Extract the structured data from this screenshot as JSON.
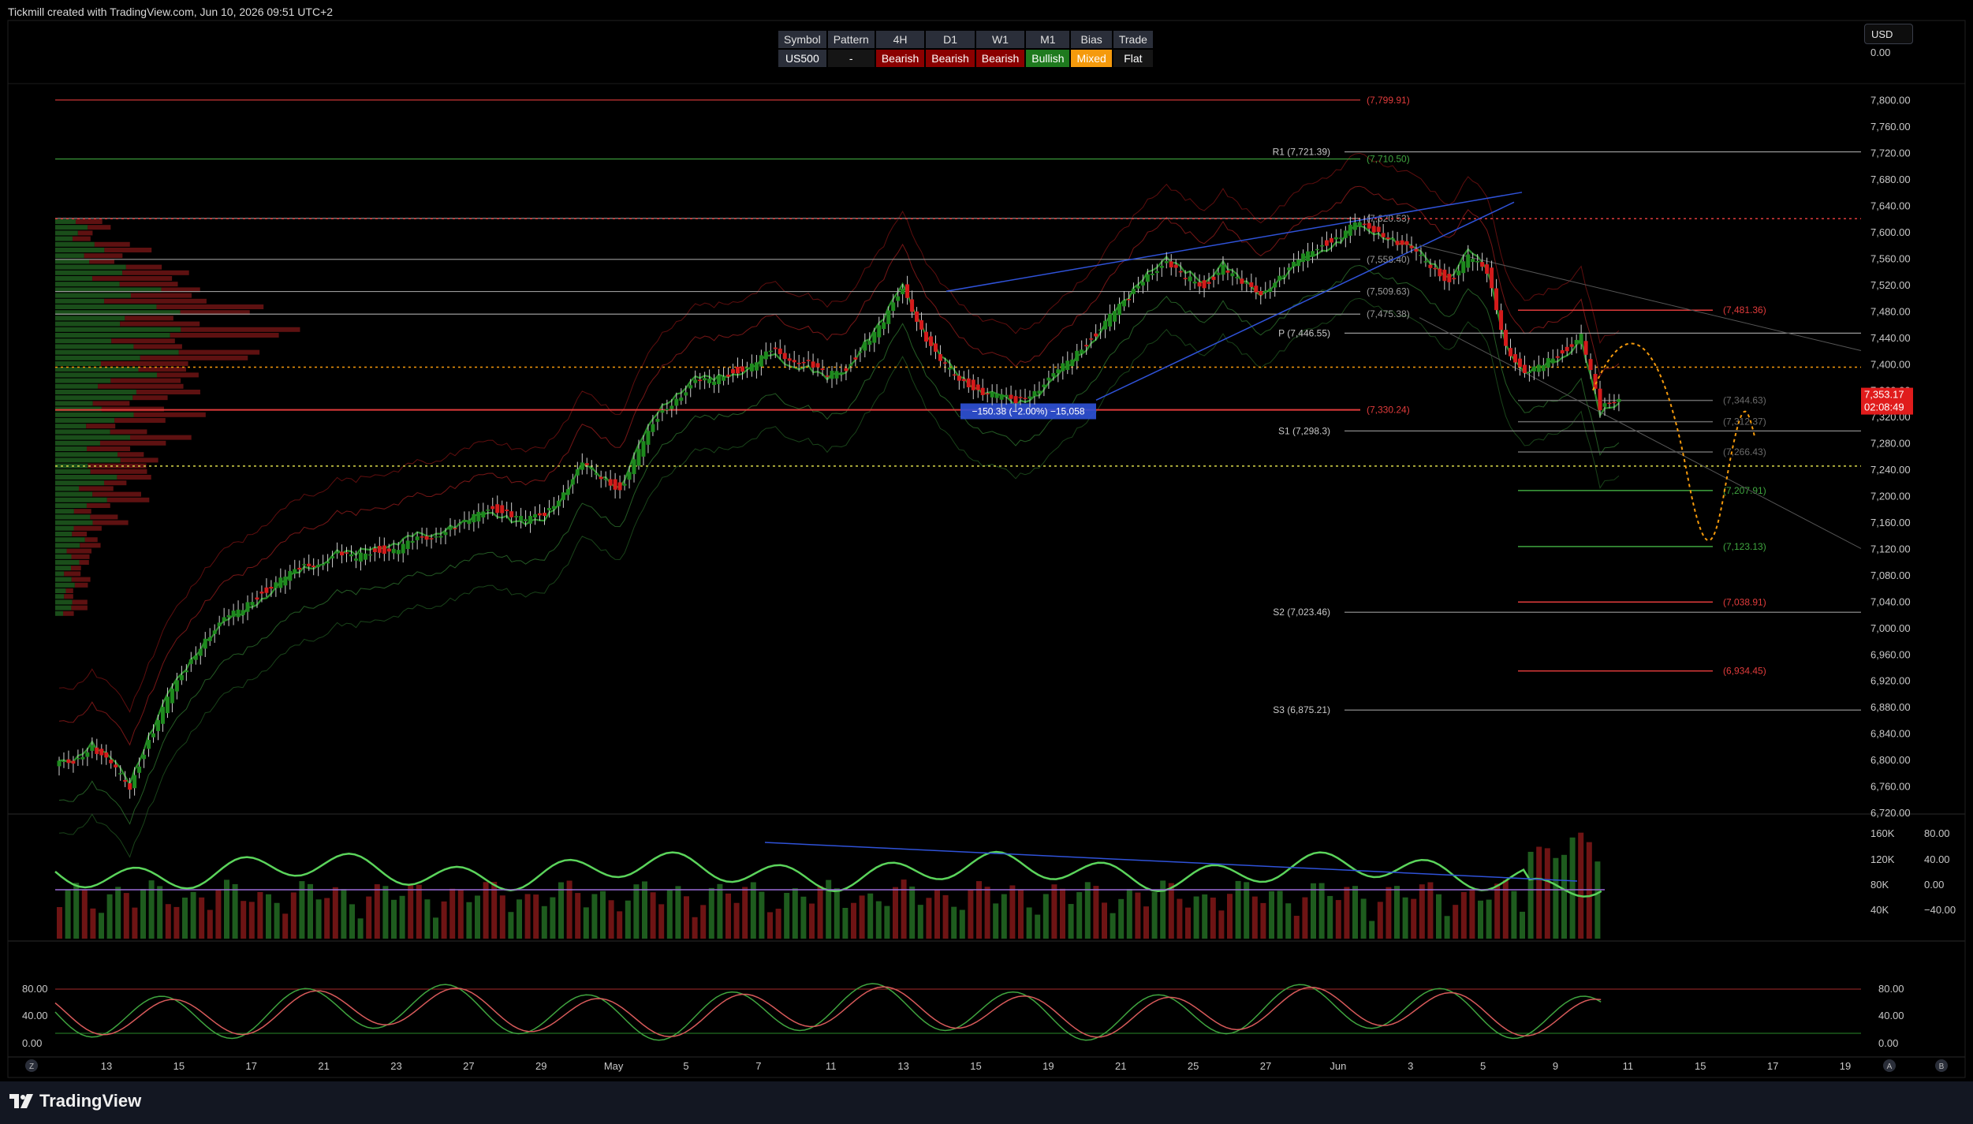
{
  "header": {
    "caption": "Tickmill created with TradingView.com, Jun 10, 2026 09:51 UTC+2"
  },
  "currency": "USD",
  "bias_table": {
    "headers": [
      "Symbol",
      "Pattern",
      "4H",
      "D1",
      "W1",
      "M1",
      "Bias",
      "Trade"
    ],
    "row": [
      {
        "text": "US500",
        "kind": "sym"
      },
      {
        "text": "-",
        "kind": "neutral"
      },
      {
        "text": "Bearish",
        "kind": "bear"
      },
      {
        "text": "Bearish",
        "kind": "bear"
      },
      {
        "text": "Bearish",
        "kind": "bear"
      },
      {
        "text": "Bullish",
        "kind": "bull"
      },
      {
        "text": "Mixed",
        "kind": "mixed"
      },
      {
        "text": "Flat",
        "kind": "neutral"
      }
    ]
  },
  "footer": {
    "brand": "TradingView"
  },
  "colors": {
    "bull": "#1e8a1e",
    "bear": "#d41b1b",
    "grid_text": "#c8c8c8",
    "level_red": "#e03b3b",
    "level_green": "#3fa43f",
    "level_white": "#9a9a9a",
    "wedge": "#2f52d8",
    "projection": "#f59a0c"
  },
  "chart_data": [
    {
      "type": "candlestick",
      "title": "",
      "y_axis_ticks": [
        "7,800.00",
        "7,760.00",
        "7,720.00",
        "7,680.00",
        "7,640.00",
        "7,600.00",
        "7,560.00",
        "7,520.00",
        "7,480.00",
        "7,440.00",
        "7,400.00",
        "7,360.00",
        "7,320.00",
        "7,280.00",
        "7,240.00",
        "7,200.00",
        "7,160.00",
        "7,120.00",
        "7,080.00",
        "7,040.00",
        "7,000.00",
        "6,960.00",
        "6,920.00",
        "6,880.00",
        "6,840.00",
        "6,800.00",
        "6,760.00",
        "6,720.00"
      ],
      "ylim": [
        6720,
        7820
      ],
      "x_axis_ticks": [
        "13",
        "15",
        "17",
        "21",
        "23",
        "27",
        "29",
        "May",
        "5",
        "7",
        "11",
        "13",
        "15",
        "19",
        "21",
        "25",
        "27",
        "Jun",
        "3",
        "5",
        "9",
        "11",
        "15",
        "17",
        "19"
      ],
      "last_price": {
        "value": "7,353.17",
        "countdown": "02:08:49"
      },
      "top_axis_value": "0.00",
      "price_path": [
        6800,
        6820,
        6790,
        6760,
        6830,
        6890,
        6940,
        6985,
        7010,
        7030,
        7055,
        7070,
        7090,
        7100,
        7110,
        7105,
        7120,
        7115,
        7130,
        7140,
        7150,
        7160,
        7185,
        7175,
        7160,
        7175,
        7205,
        7245,
        7230,
        7210,
        7265,
        7320,
        7350,
        7370,
        7375,
        7390,
        7395,
        7420,
        7410,
        7400,
        7380,
        7395,
        7430,
        7460,
        7520,
        7450,
        7400,
        7380,
        7360,
        7350,
        7345,
        7360,
        7380,
        7410,
        7440,
        7470,
        7500,
        7540,
        7550,
        7530,
        7520,
        7545,
        7520,
        7510,
        7530,
        7555,
        7580,
        7590,
        7610,
        7605,
        7590,
        7570,
        7550,
        7525,
        7560,
        7540,
        7430,
        7380,
        7400,
        7420,
        7440,
        7330,
        7352
      ],
      "levels": [
        {
          "label": "(7,799.91)",
          "price": 7799.91,
          "color": "red"
        },
        {
          "label": "(7,710.50)",
          "price": 7710.5,
          "color": "green"
        },
        {
          "label": "R1 (7,721.39)",
          "price": 7721.39,
          "color": "white"
        },
        {
          "label": "(7,620.53)",
          "price": 7620.53,
          "color": "white"
        },
        {
          "label": "(7,558.40)",
          "price": 7558.4,
          "color": "white"
        },
        {
          "label": "(7,509.63)",
          "price": 7509.63,
          "color": "white"
        },
        {
          "label": "(7,475.38)",
          "price": 7475.38,
          "color": "white"
        },
        {
          "label": "P (7,446.55)",
          "price": 7446.55,
          "color": "white"
        },
        {
          "label": "(7,330.24)",
          "price": 7330.24,
          "color": "red"
        },
        {
          "label": "S1 (7,298.3)",
          "price": 7298.3,
          "color": "white"
        },
        {
          "label": "S2 (7,023.46)",
          "price": 7023.46,
          "color": "white"
        },
        {
          "label": "S3 (6,875.21)",
          "price": 6875.21,
          "color": "white"
        }
      ],
      "right_levels": [
        {
          "label": "(7,481.36)",
          "price": 7481.36,
          "color": "red"
        },
        {
          "label": "(7,344.63)",
          "price": 7344.63,
          "color": "gray"
        },
        {
          "label": "(7,312.37)",
          "price": 7312.37,
          "color": "gray"
        },
        {
          "label": "(7,266.43)",
          "price": 7266.43,
          "color": "gray"
        },
        {
          "label": "(7,207.91)",
          "price": 7207.91,
          "color": "green"
        },
        {
          "label": "(7,123.13)",
          "price": 7123.13,
          "color": "green"
        },
        {
          "label": "(7,038.91)",
          "price": 7038.91,
          "color": "red"
        },
        {
          "label": "(6,934.45)",
          "price": 6934.45,
          "color": "red"
        }
      ],
      "measure_label": "−150.38 (−2.00%) −15,058"
    },
    {
      "type": "bar",
      "title": "",
      "y_axis_ticks": [
        "160K",
        "120K",
        "80K",
        "40K"
      ],
      "y2_axis_ticks": [
        "80.00",
        "40.00",
        "0.00",
        "−40.00"
      ]
    },
    {
      "type": "line",
      "title": "",
      "y_axis_ticks_left": [
        "80.00",
        "40.00",
        "0.00"
      ],
      "y_axis_ticks_right": [
        "80.00",
        "40.00",
        "0.00"
      ]
    }
  ],
  "axis_badges": {
    "left": "Z",
    "right_a": "A",
    "right_b": "B"
  }
}
